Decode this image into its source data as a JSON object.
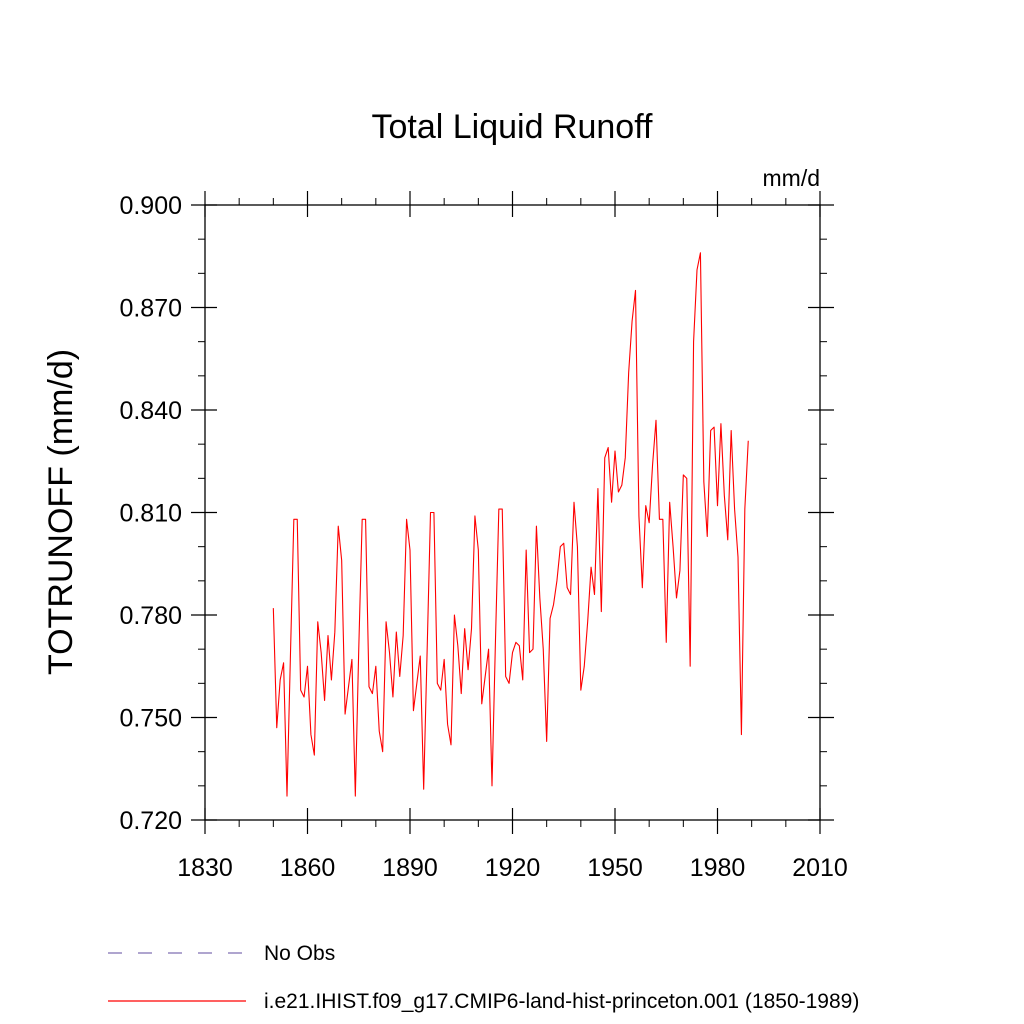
{
  "chart_data": {
    "type": "line",
    "title": "Total Liquid Runoff",
    "units": "mm/d",
    "ylabel": "TOTRUNOFF  (mm/d)",
    "xlabel": "",
    "xlim": [
      1830,
      2010
    ],
    "ylim": [
      0.72,
      0.9
    ],
    "xticks": [
      "1830",
      "1860",
      "1890",
      "1920",
      "1950",
      "1980",
      "2010"
    ],
    "yticks": [
      "0.720",
      "0.750",
      "0.780",
      "0.810",
      "0.840",
      "0.870",
      "0.900"
    ],
    "legend_position": "bottom-left",
    "grid": false,
    "series": [
      {
        "name": "i.e21.IHIST.f09_g17.CMIP6-land-hist-princeton.001 (1850-1989)",
        "color": "#ff0000",
        "style": "solid",
        "x": [
          1850,
          1851,
          1852,
          1853,
          1854,
          1855,
          1856,
          1857,
          1858,
          1859,
          1860,
          1861,
          1862,
          1863,
          1864,
          1865,
          1866,
          1867,
          1868,
          1869,
          1870,
          1871,
          1872,
          1873,
          1874,
          1875,
          1876,
          1877,
          1878,
          1879,
          1880,
          1881,
          1882,
          1883,
          1884,
          1885,
          1886,
          1887,
          1888,
          1889,
          1890,
          1891,
          1892,
          1893,
          1894,
          1895,
          1896,
          1897,
          1898,
          1899,
          1900,
          1901,
          1902,
          1903,
          1904,
          1905,
          1906,
          1907,
          1908,
          1909,
          1910,
          1911,
          1912,
          1913,
          1914,
          1915,
          1916,
          1917,
          1918,
          1919,
          1920,
          1921,
          1922,
          1923,
          1924,
          1925,
          1926,
          1927,
          1928,
          1929,
          1930,
          1931,
          1932,
          1933,
          1934,
          1935,
          1936,
          1937,
          1938,
          1939,
          1940,
          1941,
          1942,
          1943,
          1944,
          1945,
          1946,
          1947,
          1948,
          1949,
          1950,
          1951,
          1952,
          1953,
          1954,
          1955,
          1956,
          1957,
          1958,
          1959,
          1960,
          1961,
          1962,
          1963,
          1964,
          1965,
          1966,
          1967,
          1968,
          1969,
          1970,
          1971,
          1972,
          1973,
          1974,
          1975,
          1976,
          1977,
          1978,
          1979,
          1980,
          1981,
          1982,
          1983,
          1984,
          1985,
          1986,
          1987,
          1988,
          1989
        ],
        "values": [
          0.782,
          0.747,
          0.761,
          0.766,
          0.727,
          0.768,
          0.808,
          0.808,
          0.758,
          0.756,
          0.765,
          0.745,
          0.739,
          0.778,
          0.769,
          0.755,
          0.774,
          0.761,
          0.775,
          0.806,
          0.796,
          0.751,
          0.759,
          0.767,
          0.727,
          0.77,
          0.808,
          0.808,
          0.759,
          0.757,
          0.765,
          0.746,
          0.74,
          0.778,
          0.769,
          0.756,
          0.775,
          0.762,
          0.774,
          0.808,
          0.799,
          0.752,
          0.76,
          0.768,
          0.729,
          0.769,
          0.81,
          0.81,
          0.76,
          0.758,
          0.767,
          0.748,
          0.742,
          0.78,
          0.771,
          0.757,
          0.776,
          0.764,
          0.776,
          0.809,
          0.799,
          0.754,
          0.762,
          0.77,
          0.73,
          0.772,
          0.811,
          0.811,
          0.762,
          0.76,
          0.769,
          0.772,
          0.771,
          0.761,
          0.799,
          0.769,
          0.77,
          0.806,
          0.785,
          0.77,
          0.743,
          0.779,
          0.783,
          0.79,
          0.8,
          0.801,
          0.788,
          0.786,
          0.813,
          0.8,
          0.758,
          0.765,
          0.778,
          0.794,
          0.786,
          0.817,
          0.781,
          0.826,
          0.829,
          0.813,
          0.828,
          0.816,
          0.818,
          0.826,
          0.851,
          0.866,
          0.875,
          0.809,
          0.788,
          0.812,
          0.807,
          0.824,
          0.837,
          0.808,
          0.808,
          0.772,
          0.813,
          0.8,
          0.785,
          0.793,
          0.821,
          0.82,
          0.765,
          0.86,
          0.881,
          0.886,
          0.819,
          0.803,
          0.834,
          0.835,
          0.812,
          0.836,
          0.815,
          0.802,
          0.834,
          0.811,
          0.797,
          0.745,
          0.811,
          0.831
        ]
      },
      {
        "name": "No Obs",
        "color": "#7f6fb2",
        "style": "dashed",
        "x": [],
        "values": []
      }
    ]
  }
}
